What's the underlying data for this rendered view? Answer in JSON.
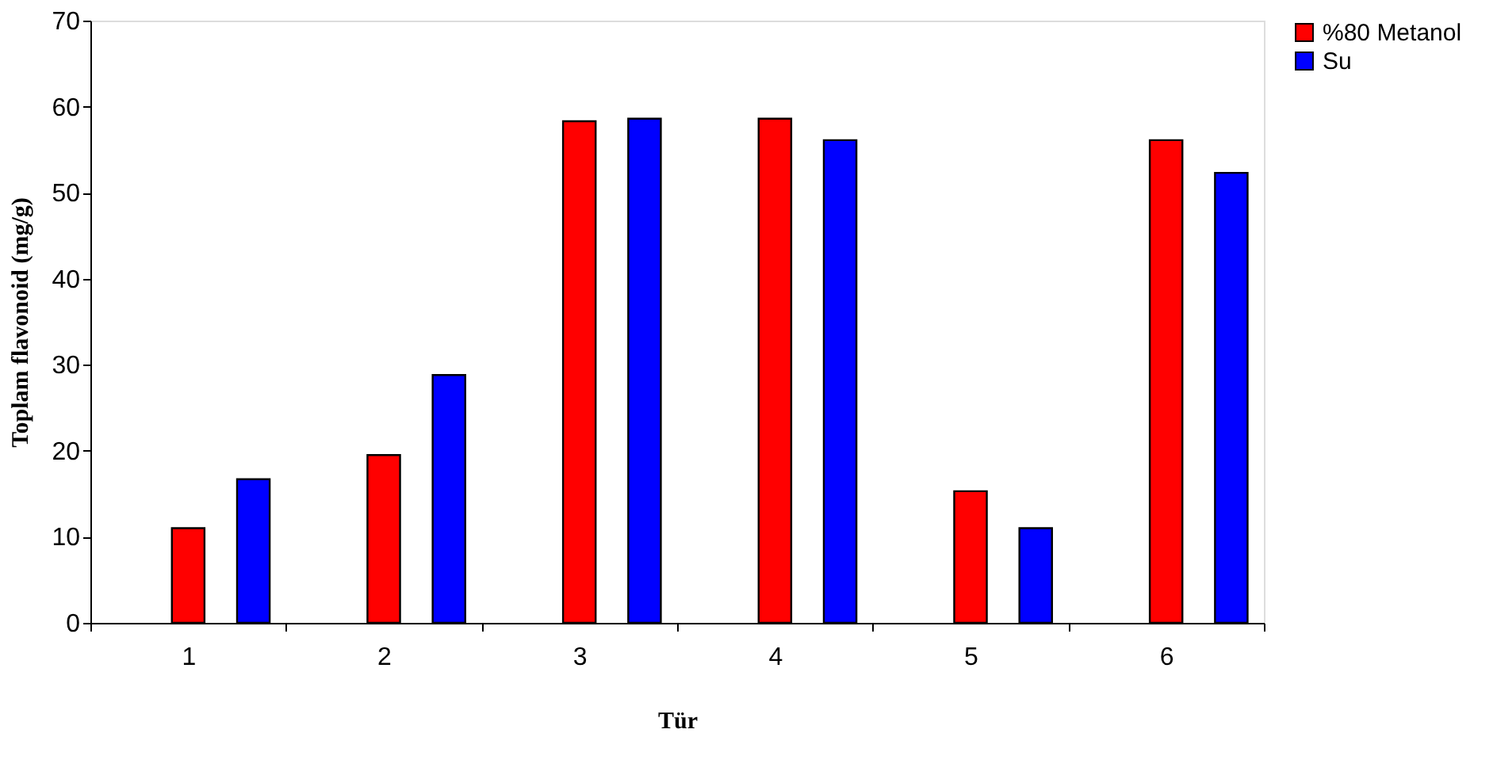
{
  "chart_data": {
    "type": "bar",
    "xlabel": "Tür",
    "ylabel": "Toplam flavonoid (mg/g)",
    "categories": [
      "1",
      "2",
      "3",
      "4",
      "5",
      "6"
    ],
    "series": [
      {
        "name": "%80 Metanol",
        "color": "#ff0000",
        "values": [
          11.0,
          19.5,
          58.3,
          58.6,
          15.3,
          56.1
        ]
      },
      {
        "name": "Su",
        "color": "#0000ff",
        "values": [
          16.7,
          28.8,
          58.6,
          56.1,
          11.0,
          52.3
        ]
      }
    ],
    "ylim": [
      0,
      70
    ],
    "yticks": [
      0,
      10,
      20,
      30,
      40,
      50,
      60,
      70
    ],
    "grid": false,
    "legend": "right"
  }
}
